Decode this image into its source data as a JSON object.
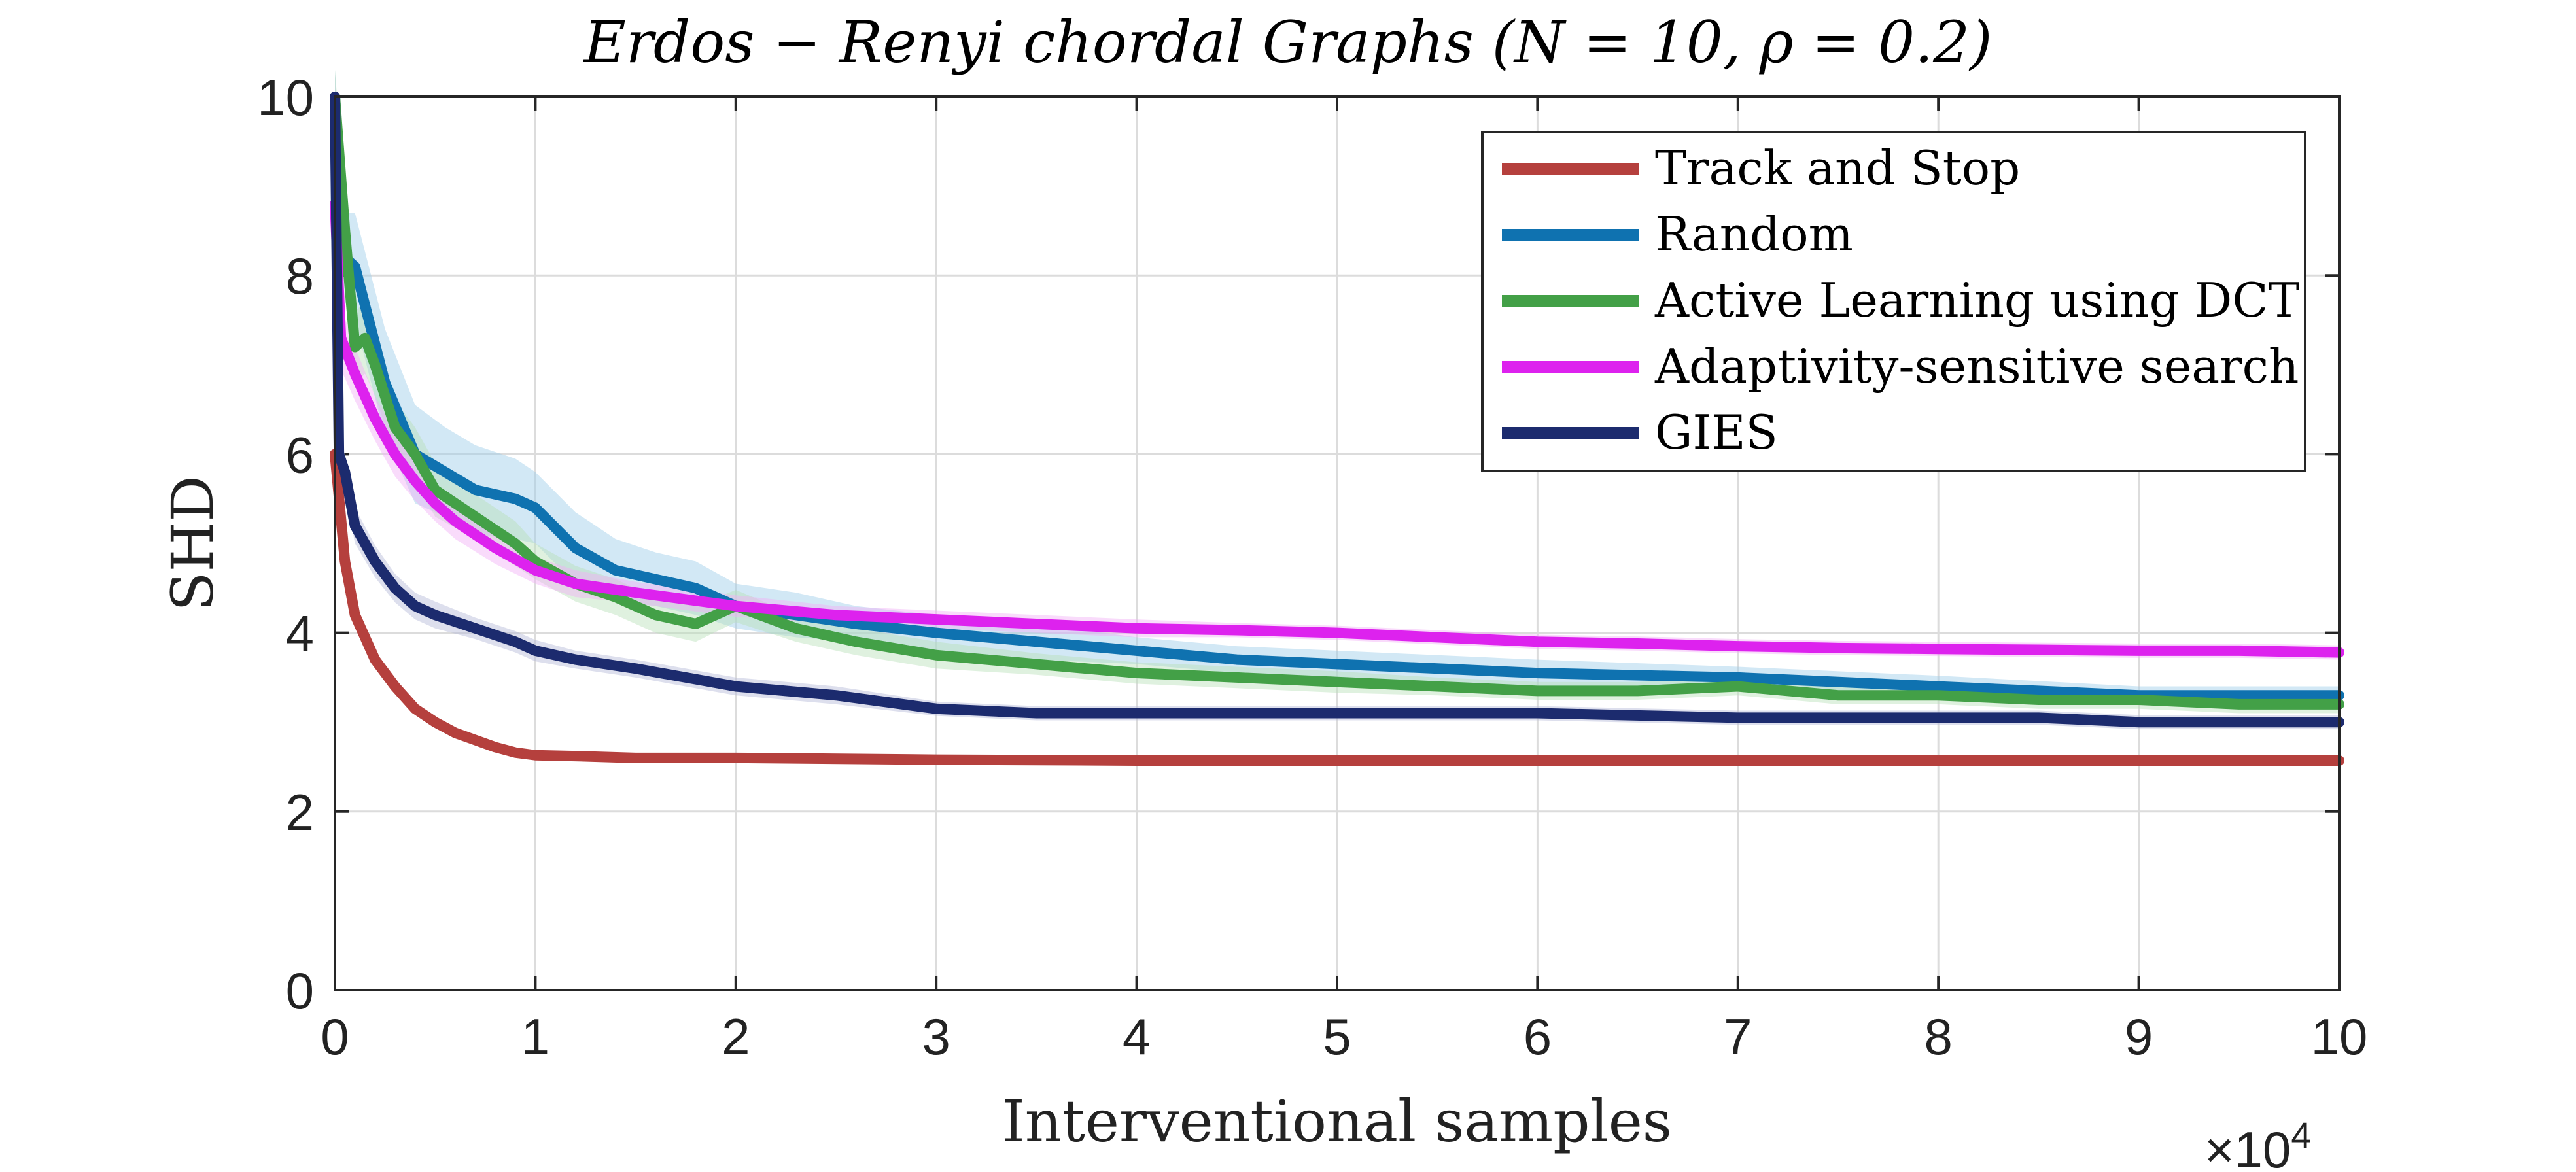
{
  "chart_data": {
    "type": "line",
    "title": "Erdos − Renyi chordal Graphs (N = 10, ρ = 0.2)",
    "xlabel": "Interventional samples",
    "ylabel": "SHD",
    "x_multiplier": "×10",
    "x_multiplier_exp": "4",
    "xlim": [
      0,
      10
    ],
    "ylim": [
      0,
      10
    ],
    "xticks": [
      "0",
      "1",
      "2",
      "3",
      "4",
      "5",
      "6",
      "7",
      "8",
      "9",
      "10"
    ],
    "yticks": [
      "0",
      "2",
      "4",
      "6",
      "8",
      "10"
    ],
    "grid": true,
    "legend_position": "top-right",
    "series": [
      {
        "name": "Track and Stop",
        "color": "#b5403d",
        "band_color": "#e7b1b0",
        "x": [
          0,
          0.05,
          0.1,
          0.2,
          0.3,
          0.4,
          0.5,
          0.6,
          0.7,
          0.8,
          0.9,
          1.0,
          1.2,
          1.5,
          2,
          3,
          4,
          5,
          6,
          7,
          8,
          9,
          10
        ],
        "y": [
          6.0,
          4.8,
          4.2,
          3.7,
          3.4,
          3.15,
          3.0,
          2.88,
          2.8,
          2.72,
          2.66,
          2.63,
          2.62,
          2.6,
          2.6,
          2.58,
          2.57,
          2.57,
          2.57,
          2.57,
          2.57,
          2.57,
          2.57
        ],
        "band": [
          0.08,
          0.1,
          0.1,
          0.08,
          0.07,
          0.06,
          0.06,
          0.05,
          0.05,
          0.04,
          0.04,
          0.03,
          0.03,
          0.02,
          0.02,
          0.02,
          0.02,
          0.02,
          0.02,
          0.02,
          0.02,
          0.02,
          0.02
        ]
      },
      {
        "name": "Random",
        "color": "#0f72b0",
        "band_color": "#9ccbe8",
        "x": [
          0,
          0.05,
          0.1,
          0.25,
          0.4,
          0.55,
          0.7,
          0.9,
          1.0,
          1.2,
          1.4,
          1.6,
          1.8,
          2.0,
          2.3,
          2.6,
          3.0,
          3.5,
          4.0,
          4.5,
          5.0,
          6.0,
          7.0,
          8.0,
          9.0,
          10.0
        ],
        "y": [
          10,
          8.2,
          8.1,
          6.8,
          6.0,
          5.8,
          5.6,
          5.5,
          5.4,
          4.95,
          4.7,
          4.6,
          4.5,
          4.3,
          4.2,
          4.1,
          4.0,
          3.9,
          3.8,
          3.7,
          3.65,
          3.55,
          3.5,
          3.4,
          3.3,
          3.3
        ],
        "band": [
          0.3,
          0.5,
          0.6,
          0.6,
          0.55,
          0.5,
          0.5,
          0.45,
          0.4,
          0.4,
          0.35,
          0.3,
          0.3,
          0.25,
          0.25,
          0.2,
          0.2,
          0.2,
          0.15,
          0.15,
          0.15,
          0.15,
          0.12,
          0.12,
          0.1,
          0.1
        ]
      },
      {
        "name": "Active Learning using DCT",
        "color": "#43a047",
        "band_color": "#b9dfb8",
        "x": [
          0,
          0.05,
          0.1,
          0.15,
          0.2,
          0.3,
          0.4,
          0.5,
          0.7,
          0.9,
          1.0,
          1.2,
          1.4,
          1.6,
          1.8,
          2.0,
          2.3,
          2.6,
          3.0,
          3.5,
          4.0,
          4.5,
          5.0,
          5.5,
          6.0,
          6.5,
          7.0,
          7.5,
          8.0,
          8.5,
          9.0,
          9.5,
          10.0
        ],
        "y": [
          10,
          8.5,
          7.2,
          7.3,
          7.0,
          6.3,
          6.0,
          5.6,
          5.3,
          5.0,
          4.8,
          4.55,
          4.4,
          4.2,
          4.1,
          4.3,
          4.05,
          3.9,
          3.75,
          3.65,
          3.55,
          3.5,
          3.45,
          3.4,
          3.35,
          3.35,
          3.4,
          3.3,
          3.3,
          3.25,
          3.25,
          3.2,
          3.2
        ],
        "band": [
          0.3,
          0.4,
          0.4,
          0.4,
          0.35,
          0.3,
          0.3,
          0.3,
          0.25,
          0.25,
          0.2,
          0.2,
          0.2,
          0.2,
          0.2,
          0.18,
          0.15,
          0.15,
          0.15,
          0.12,
          0.12,
          0.12,
          0.12,
          0.1,
          0.1,
          0.1,
          0.1,
          0.1,
          0.1,
          0.1,
          0.1,
          0.1,
          0.1
        ]
      },
      {
        "name": "Adaptivity-sensitive search",
        "color": "#dd22ee",
        "band_color": "#f1b0f7",
        "x": [
          0,
          0.03,
          0.1,
          0.2,
          0.3,
          0.4,
          0.5,
          0.6,
          0.8,
          1.0,
          1.2,
          1.5,
          2.0,
          2.5,
          3.0,
          3.5,
          4.0,
          4.5,
          5.0,
          5.5,
          6.0,
          6.5,
          7.0,
          7.5,
          8.0,
          8.5,
          9.0,
          9.5,
          10.0
        ],
        "y": [
          8.8,
          7.3,
          6.9,
          6.4,
          6.0,
          5.7,
          5.45,
          5.25,
          4.95,
          4.7,
          4.55,
          4.45,
          4.3,
          4.2,
          4.15,
          4.1,
          4.05,
          4.03,
          4.0,
          3.95,
          3.9,
          3.88,
          3.85,
          3.83,
          3.82,
          3.81,
          3.8,
          3.8,
          3.78
        ],
        "band": [
          0.3,
          0.35,
          0.3,
          0.25,
          0.25,
          0.22,
          0.2,
          0.2,
          0.18,
          0.15,
          0.15,
          0.12,
          0.12,
          0.1,
          0.1,
          0.1,
          0.1,
          0.08,
          0.08,
          0.08,
          0.08,
          0.08,
          0.08,
          0.08,
          0.08,
          0.08,
          0.08,
          0.08,
          0.08
        ]
      },
      {
        "name": "GIES",
        "color": "#1c2b6e",
        "band_color": "#b4b9d6",
        "x": [
          0,
          0.02,
          0.05,
          0.1,
          0.2,
          0.3,
          0.4,
          0.5,
          0.7,
          0.9,
          1.0,
          1.2,
          1.5,
          2.0,
          2.5,
          3.0,
          3.5,
          4.0,
          5.0,
          6.0,
          7.0,
          7.5,
          8.0,
          8.5,
          9.0,
          9.5,
          10.0
        ],
        "y": [
          10,
          6.0,
          5.8,
          5.2,
          4.8,
          4.5,
          4.3,
          4.2,
          4.05,
          3.9,
          3.8,
          3.7,
          3.6,
          3.4,
          3.3,
          3.15,
          3.1,
          3.1,
          3.1,
          3.1,
          3.05,
          3.05,
          3.05,
          3.05,
          3.0,
          3.0,
          3.0
        ],
        "band": [
          0.3,
          0.2,
          0.2,
          0.2,
          0.18,
          0.16,
          0.15,
          0.15,
          0.12,
          0.12,
          0.12,
          0.1,
          0.1,
          0.1,
          0.1,
          0.08,
          0.08,
          0.08,
          0.08,
          0.08,
          0.08,
          0.08,
          0.08,
          0.08,
          0.08,
          0.08,
          0.08
        ]
      }
    ]
  }
}
